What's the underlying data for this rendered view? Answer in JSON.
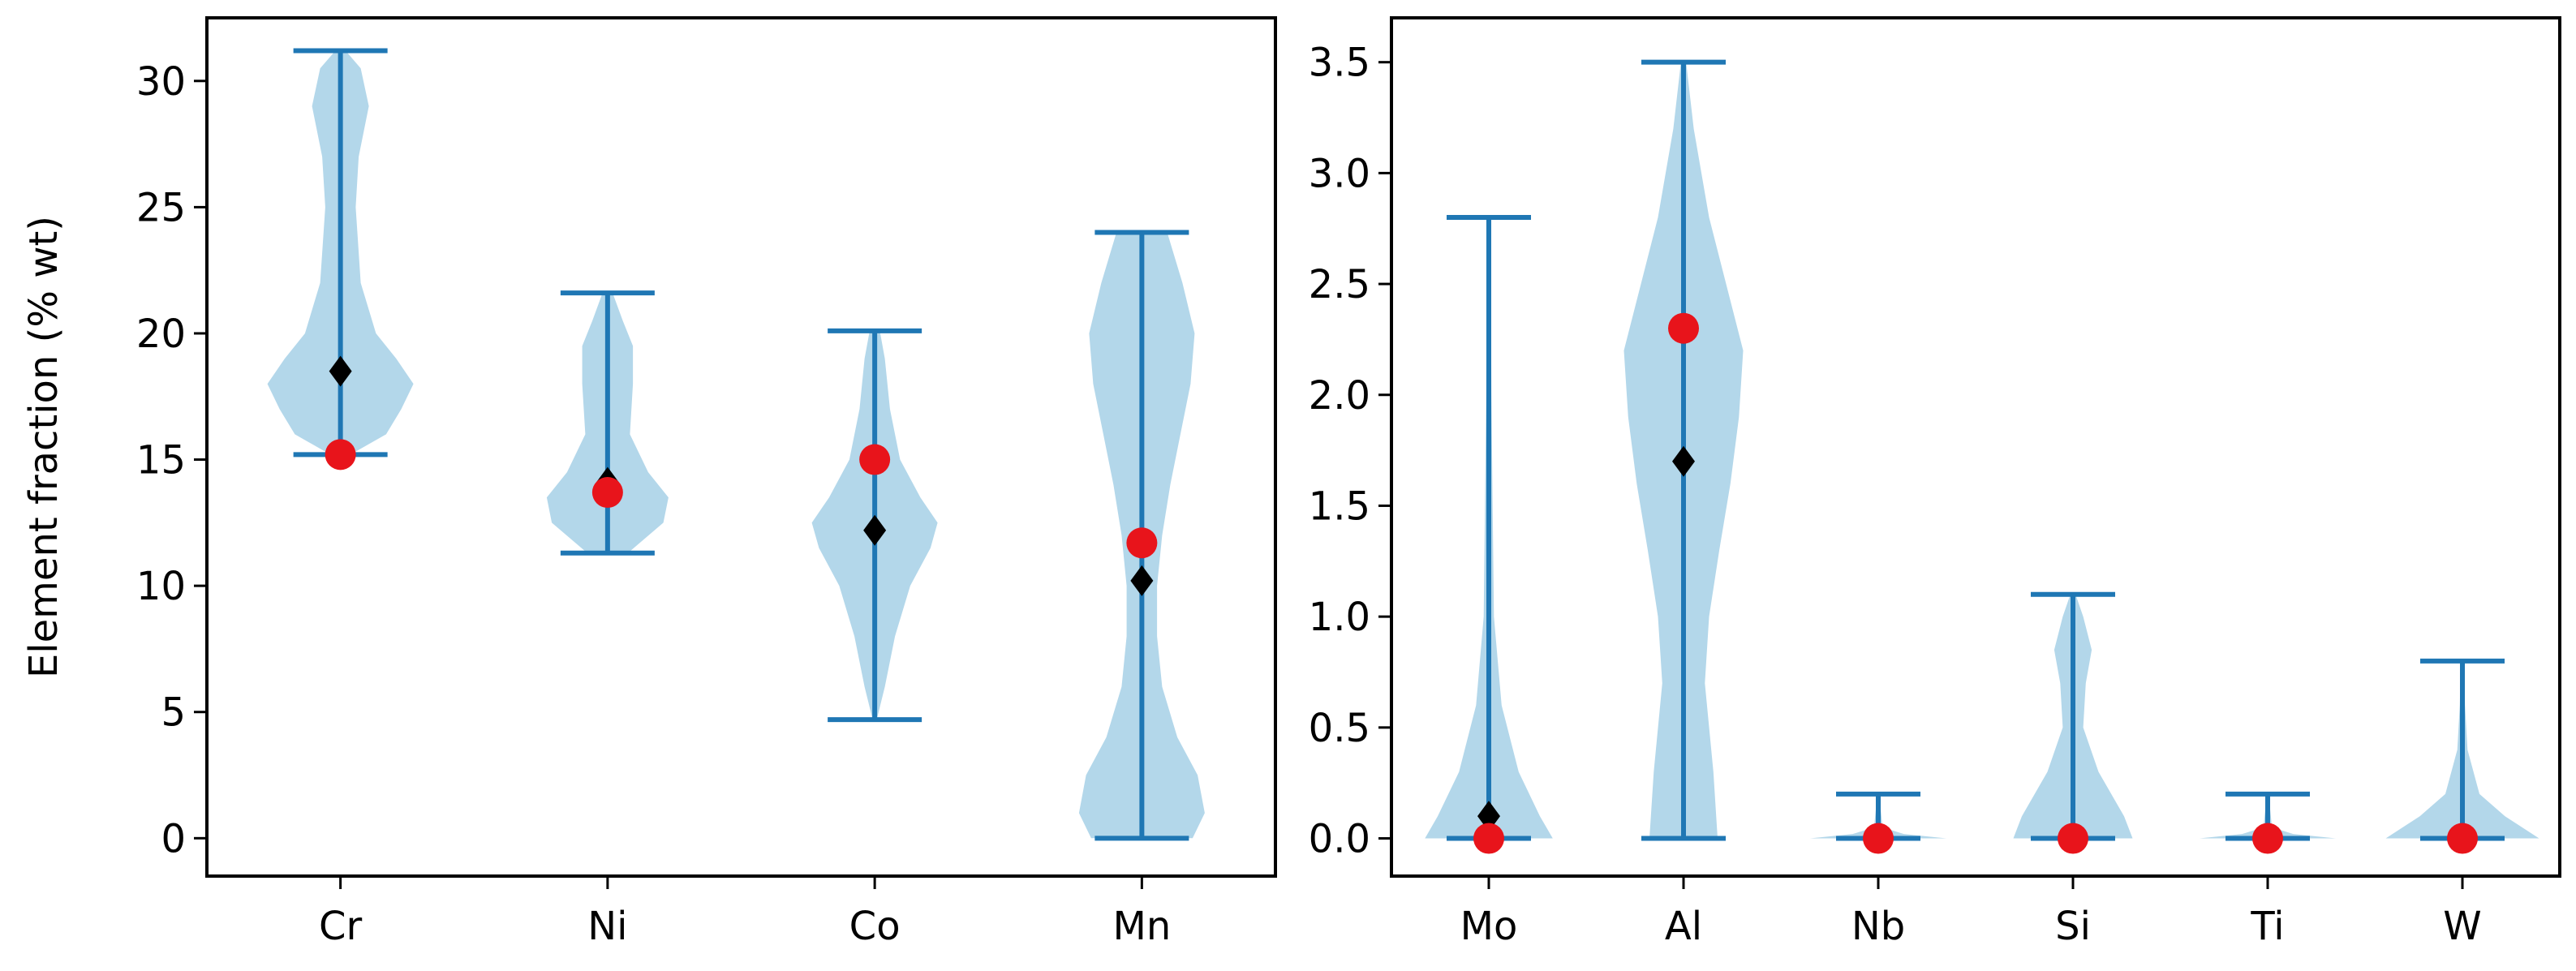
{
  "colors": {
    "violin_fill": "#b3d7ea",
    "range_line": "#1f77b4",
    "mean_marker": "#e8141b",
    "median_marker": "#000000",
    "axis": "#000000"
  },
  "chart_data": [
    {
      "type": "violin",
      "ylabel": "Element fraction (% wt)",
      "xlabel": "",
      "ylim": [
        -1.5,
        32.5
      ],
      "yticks": [
        0,
        5,
        10,
        15,
        20,
        25,
        30
      ],
      "ytick_labels": [
        "0",
        "5",
        "10",
        "15",
        "20",
        "25",
        "30"
      ],
      "categories": [
        "Cr",
        "Ni",
        "Co",
        "Mn"
      ],
      "ranges": [
        [
          15.2,
          31.2
        ],
        [
          11.3,
          21.6
        ],
        [
          4.7,
          20.1
        ],
        [
          0.0,
          24.0
        ]
      ],
      "medians": [
        18.5,
        14.1,
        12.2,
        10.2
      ],
      "highlight_points": [
        15.2,
        13.7,
        15.0,
        11.7
      ],
      "density_profiles": [
        [
          [
            15.2,
            0.1
          ],
          [
            16.0,
            0.45
          ],
          [
            17.0,
            0.6
          ],
          [
            18.0,
            0.72
          ],
          [
            19.0,
            0.55
          ],
          [
            20.0,
            0.35
          ],
          [
            22.0,
            0.2
          ],
          [
            25.0,
            0.15
          ],
          [
            27.0,
            0.18
          ],
          [
            29.0,
            0.28
          ],
          [
            30.5,
            0.2
          ],
          [
            31.2,
            0.05
          ]
        ],
        [
          [
            11.3,
            0.2
          ],
          [
            12.5,
            0.55
          ],
          [
            13.5,
            0.6
          ],
          [
            14.5,
            0.4
          ],
          [
            16.0,
            0.22
          ],
          [
            18.0,
            0.25
          ],
          [
            19.5,
            0.25
          ],
          [
            20.5,
            0.15
          ],
          [
            21.6,
            0.05
          ]
        ],
        [
          [
            4.7,
            0.02
          ],
          [
            6.0,
            0.1
          ],
          [
            8.0,
            0.2
          ],
          [
            10.0,
            0.35
          ],
          [
            11.5,
            0.55
          ],
          [
            12.5,
            0.62
          ],
          [
            13.5,
            0.45
          ],
          [
            15.0,
            0.25
          ],
          [
            17.0,
            0.15
          ],
          [
            19.0,
            0.1
          ],
          [
            20.1,
            0.05
          ]
        ],
        [
          [
            0.0,
            0.5
          ],
          [
            1.0,
            0.62
          ],
          [
            2.5,
            0.55
          ],
          [
            4.0,
            0.35
          ],
          [
            6.0,
            0.2
          ],
          [
            8.0,
            0.15
          ],
          [
            10.0,
            0.15
          ],
          [
            12.0,
            0.2
          ],
          [
            14.0,
            0.28
          ],
          [
            16.0,
            0.38
          ],
          [
            18.0,
            0.48
          ],
          [
            20.0,
            0.52
          ],
          [
            22.0,
            0.4
          ],
          [
            24.0,
            0.25
          ]
        ]
      ]
    },
    {
      "type": "violin",
      "ylabel": "",
      "xlabel": "",
      "ylim": [
        -0.17,
        3.7
      ],
      "yticks": [
        0,
        0.5,
        1.0,
        1.5,
        2.0,
        2.5,
        3.0,
        3.5
      ],
      "ytick_labels": [
        "0.0",
        "0.5",
        "1.0",
        "1.5",
        "2.0",
        "2.5",
        "3.0",
        "3.5"
      ],
      "categories": [
        "Mo",
        "Al",
        "Nb",
        "Si",
        "Ti",
        "W"
      ],
      "ranges": [
        [
          0.0,
          2.8
        ],
        [
          0.0,
          3.5
        ],
        [
          0.0,
          0.2
        ],
        [
          0.0,
          1.1
        ],
        [
          0.0,
          0.2
        ],
        [
          0.0,
          0.8
        ]
      ],
      "medians": [
        0.1,
        1.7,
        0.0,
        0.0,
        0.0,
        0.0
      ],
      "highlight_points": [
        0.0,
        2.3,
        0.0,
        0.0,
        0.0,
        0.0
      ],
      "density_profiles": [
        [
          [
            0.0,
            0.75
          ],
          [
            0.1,
            0.6
          ],
          [
            0.3,
            0.35
          ],
          [
            0.6,
            0.15
          ],
          [
            1.0,
            0.06
          ],
          [
            2.0,
            0.03
          ],
          [
            2.8,
            0.02
          ]
        ],
        [
          [
            0.0,
            0.4
          ],
          [
            0.3,
            0.35
          ],
          [
            0.7,
            0.25
          ],
          [
            1.0,
            0.3
          ],
          [
            1.3,
            0.42
          ],
          [
            1.6,
            0.55
          ],
          [
            1.9,
            0.65
          ],
          [
            2.2,
            0.7
          ],
          [
            2.5,
            0.5
          ],
          [
            2.8,
            0.3
          ],
          [
            3.2,
            0.12
          ],
          [
            3.5,
            0.03
          ]
        ],
        [
          [
            0.0,
            0.8
          ],
          [
            0.02,
            0.3
          ],
          [
            0.05,
            0.05
          ],
          [
            0.2,
            0.01
          ]
        ],
        [
          [
            0.0,
            0.7
          ],
          [
            0.1,
            0.6
          ],
          [
            0.3,
            0.3
          ],
          [
            0.5,
            0.12
          ],
          [
            0.7,
            0.15
          ],
          [
            0.85,
            0.22
          ],
          [
            1.0,
            0.12
          ],
          [
            1.1,
            0.03
          ]
        ],
        [
          [
            0.0,
            0.8
          ],
          [
            0.02,
            0.3
          ],
          [
            0.05,
            0.05
          ],
          [
            0.2,
            0.01
          ]
        ],
        [
          [
            0.0,
            0.9
          ],
          [
            0.1,
            0.5
          ],
          [
            0.2,
            0.2
          ],
          [
            0.4,
            0.06
          ],
          [
            0.6,
            0.03
          ],
          [
            0.8,
            0.02
          ]
        ]
      ]
    }
  ]
}
